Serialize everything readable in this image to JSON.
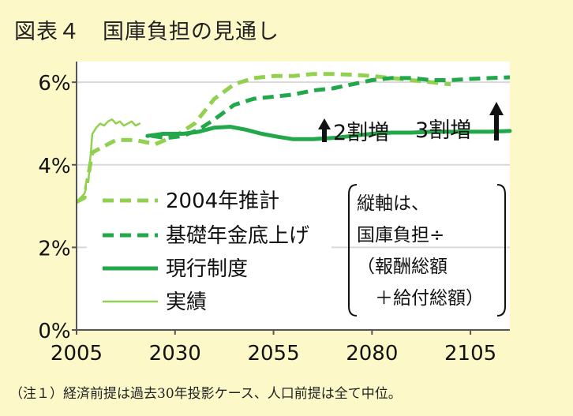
{
  "title": "図表４　国庫負担の見通し",
  "note": "（注１）経済前提は過去30年投影ケース、人口前提は全て中位。",
  "colors": {
    "background": "#fdf8c8",
    "plot_background": "#ffffff",
    "light_green": "#92d050",
    "dark_green": "#22a84a",
    "grid": "#d9d9d9"
  },
  "annotations": {
    "increase_2": "2割増",
    "increase_3": "3割増",
    "arrow_icon": "up-arrow-icon"
  },
  "axis_note": {
    "lines": [
      "縦軸は、",
      "国庫負担÷",
      "（報酬総額",
      "　＋給付総額）"
    ]
  },
  "chart_data": {
    "type": "line",
    "title": "国庫負担の見通し",
    "xlabel": "",
    "ylabel": "",
    "xlim": [
      2005,
      2115
    ],
    "ylim": [
      0,
      6.5
    ],
    "x_ticks": [
      "2005",
      "2030",
      "2055",
      "2080",
      "2105"
    ],
    "x_tick_values": [
      2005,
      2030,
      2055,
      2080,
      2105
    ],
    "y_ticks": [
      "0%",
      "2%",
      "4%",
      "6%"
    ],
    "y_tick_values": [
      0,
      2,
      4,
      6
    ],
    "grid": "horizontal",
    "legend_position": "bottom-left",
    "series": [
      {
        "name": "2004年推計",
        "style": "dashed",
        "color": "#92d050",
        "x": [
          2005,
          2007,
          2009,
          2015,
          2020,
          2025,
          2030,
          2035,
          2040,
          2045,
          2050,
          2055,
          2060,
          2065,
          2070,
          2075,
          2080,
          2085,
          2090,
          2095,
          2100
        ],
        "y": [
          3.1,
          3.2,
          4.3,
          4.6,
          4.6,
          4.5,
          4.7,
          5.0,
          5.6,
          5.95,
          6.1,
          6.15,
          6.15,
          6.2,
          6.2,
          6.18,
          6.15,
          6.1,
          6.05,
          6.0,
          5.95
        ]
      },
      {
        "name": "基礎年金底上げ",
        "style": "dashed",
        "color": "#22a84a",
        "x": [
          2024,
          2028,
          2032,
          2036,
          2040,
          2045,
          2050,
          2055,
          2060,
          2065,
          2070,
          2075,
          2080,
          2085,
          2090,
          2095,
          2100,
          2105,
          2110,
          2115
        ],
        "y": [
          4.7,
          4.65,
          4.7,
          4.85,
          5.1,
          5.45,
          5.6,
          5.65,
          5.7,
          5.8,
          5.85,
          5.95,
          6.05,
          6.1,
          6.1,
          6.05,
          6.05,
          6.08,
          6.1,
          6.12
        ]
      },
      {
        "name": "現行制度",
        "style": "solid",
        "color": "#22a84a",
        "x": [
          2023,
          2027,
          2032,
          2036,
          2040,
          2044,
          2048,
          2052,
          2056,
          2060,
          2065,
          2070,
          2075,
          2080,
          2085,
          2090,
          2095,
          2100,
          2105,
          2110,
          2115
        ],
        "y": [
          4.7,
          4.75,
          4.75,
          4.8,
          4.9,
          4.92,
          4.85,
          4.75,
          4.68,
          4.62,
          4.62,
          4.65,
          4.7,
          4.75,
          4.78,
          4.78,
          4.8,
          4.8,
          4.8,
          4.8,
          4.82
        ]
      },
      {
        "name": "実績",
        "style": "solid-thin",
        "color": "#92d050",
        "x": [
          2005,
          2006,
          2007,
          2008,
          2009,
          2010,
          2011,
          2012,
          2013,
          2014,
          2015,
          2016,
          2017,
          2018,
          2019,
          2020,
          2021
        ],
        "y": [
          3.1,
          3.2,
          3.3,
          3.6,
          4.75,
          4.9,
          5.0,
          4.95,
          5.05,
          5.1,
          5.0,
          5.05,
          4.95,
          5.0,
          5.05,
          4.95,
          5.0
        ]
      }
    ]
  }
}
